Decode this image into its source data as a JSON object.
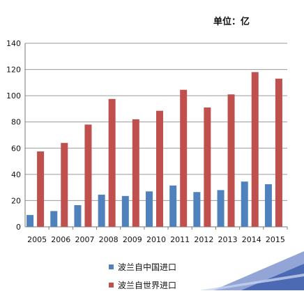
{
  "unit_label": "单位：亿",
  "chart_data": {
    "type": "bar",
    "categories": [
      "2005",
      "2006",
      "2007",
      "2008",
      "2009",
      "2010",
      "2011",
      "2012",
      "2013",
      "2014",
      "2015"
    ],
    "series": [
      {
        "name": "波兰自中国进口",
        "color": "#4F81BD",
        "values": [
          9,
          12,
          16.5,
          24.5,
          23.5,
          27,
          31.5,
          26.5,
          28,
          34.5,
          32.5
        ]
      },
      {
        "name": "波兰自世界进口",
        "color": "#C0504D",
        "values": [
          57.5,
          64,
          78,
          97.5,
          82,
          88.5,
          104.5,
          91,
          101,
          118,
          113
        ]
      }
    ],
    "ylim": [
      0,
      140
    ],
    "yticks": [
      0,
      20,
      40,
      60,
      80,
      100,
      120,
      140
    ],
    "grid": true,
    "legend_position": "bottom"
  }
}
